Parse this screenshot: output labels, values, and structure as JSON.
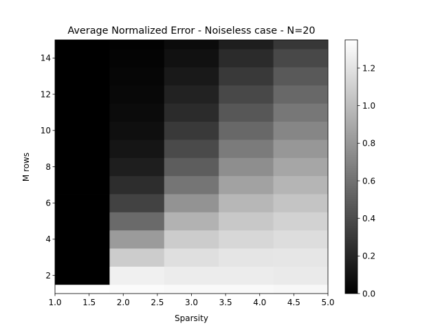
{
  "chart_data": {
    "type": "heatmap",
    "title": "Average Normalized Error - Noiseless case - N=20",
    "xlabel": "Sparsity",
    "ylabel": "M rows",
    "colormap": "gray",
    "x_centers": [
      1.4,
      2.2,
      3.0,
      3.8,
      4.6
    ],
    "x_extent": [
      1.0,
      5.0
    ],
    "y_centers": [
      1,
      2,
      3,
      4,
      5,
      6,
      7,
      8,
      9,
      10,
      11,
      12,
      13,
      14,
      15
    ],
    "y_extent": [
      1.0,
      15.0
    ],
    "x_ticks": [
      1.0,
      1.5,
      2.0,
      2.5,
      3.0,
      3.5,
      4.0,
      4.5,
      5.0
    ],
    "x_tick_labels": [
      "1.0",
      "1.5",
      "2.0",
      "2.5",
      "3.0",
      "3.5",
      "4.0",
      "4.5",
      "5.0"
    ],
    "y_ticks": [
      2,
      4,
      6,
      8,
      10,
      12,
      14
    ],
    "y_tick_labels": [
      "2",
      "4",
      "6",
      "8",
      "10",
      "12",
      "14"
    ],
    "colorbar": {
      "range": [
        0.0,
        1.35
      ],
      "ticks": [
        0.0,
        0.2,
        0.4,
        0.6,
        0.8,
        1.0,
        1.2
      ],
      "tick_labels": [
        "0.0",
        "0.2",
        "0.4",
        "0.6",
        "0.8",
        "1.0",
        "1.2"
      ]
    },
    "values": [
      [
        1.35,
        1.33,
        1.32,
        1.32,
        1.31
      ],
      [
        0.0,
        1.27,
        1.25,
        1.25,
        1.24
      ],
      [
        0.0,
        1.08,
        1.18,
        1.21,
        1.22
      ],
      [
        0.0,
        0.82,
        1.08,
        1.14,
        1.17
      ],
      [
        0.0,
        0.56,
        0.94,
        1.06,
        1.11
      ],
      [
        0.0,
        0.35,
        0.78,
        0.97,
        1.04
      ],
      [
        0.0,
        0.24,
        0.62,
        0.86,
        0.96
      ],
      [
        0.0,
        0.16,
        0.49,
        0.75,
        0.88
      ],
      [
        0.0,
        0.11,
        0.39,
        0.65,
        0.8
      ],
      [
        0.0,
        0.08,
        0.3,
        0.55,
        0.71
      ],
      [
        0.0,
        0.06,
        0.23,
        0.46,
        0.63
      ],
      [
        0.0,
        0.04,
        0.18,
        0.38,
        0.55
      ],
      [
        0.0,
        0.03,
        0.13,
        0.3,
        0.47
      ],
      [
        0.0,
        0.02,
        0.09,
        0.23,
        0.38
      ],
      [
        0.0,
        0.01,
        0.06,
        0.16,
        0.29
      ]
    ]
  }
}
